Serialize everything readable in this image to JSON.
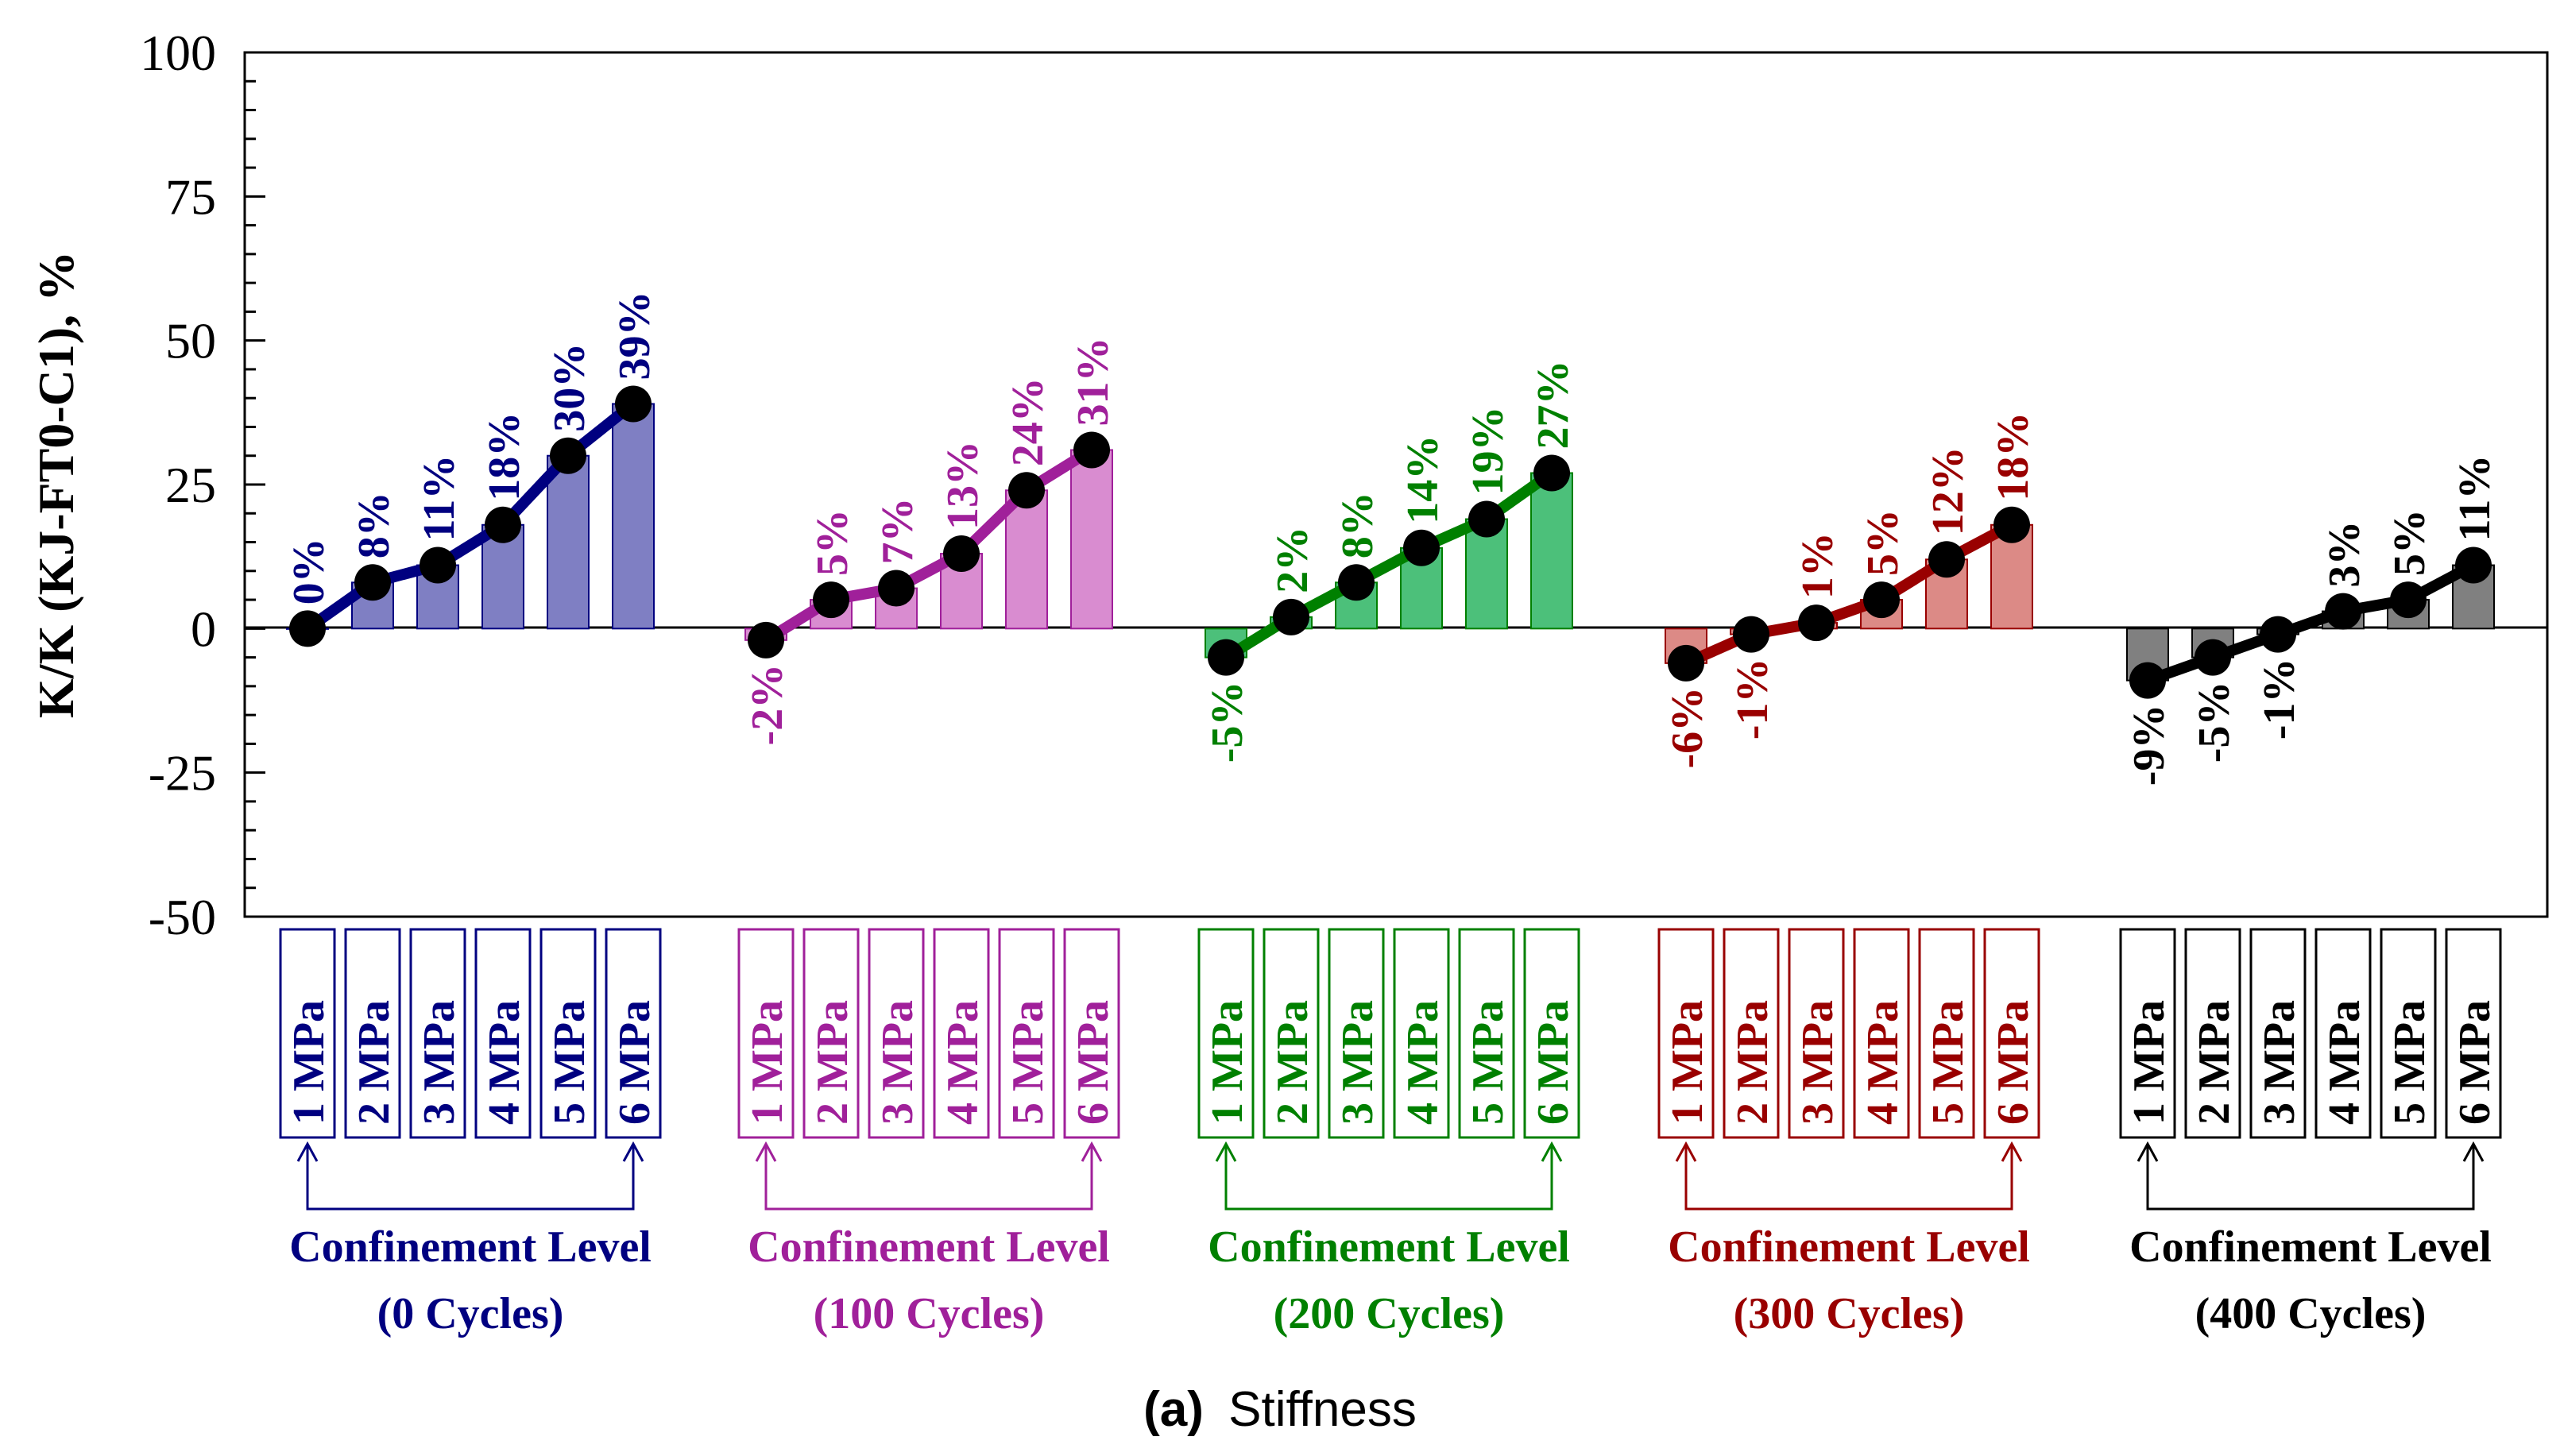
{
  "chart_data": {
    "type": "bar",
    "title": "",
    "ylabel": "K/K (KJ-FT0-C1), %",
    "xlabel": "",
    "ylim": [
      -50,
      100
    ],
    "yticks": [
      -50,
      -25,
      0,
      25,
      50,
      75,
      100
    ],
    "ytick_labels": [
      "-50",
      "-25",
      "0",
      "25",
      "50",
      "75",
      "100"
    ],
    "categories": [
      "1 MPa",
      "2 MPa",
      "3 MPa",
      "4 MPa",
      "5 MPa",
      "6 MPa"
    ],
    "series": [
      {
        "name": "0 Cycles",
        "values": [
          0,
          8,
          11,
          18,
          30,
          39
        ],
        "labels": [
          "0%",
          "8%",
          "11%",
          "18%",
          "30%",
          "39%"
        ],
        "line_color": "#000080",
        "bar_color": "#7f7fc3",
        "group_label_line1": "Confinement Level",
        "group_label_line2": "(0 Cycles)"
      },
      {
        "name": "100 Cycles",
        "values": [
          -2,
          5,
          7,
          13,
          24,
          31
        ],
        "labels": [
          "-2%",
          "5%",
          "7%",
          "13%",
          "24%",
          "31%"
        ],
        "line_color": "#a0209a",
        "bar_color": "#d98cd0",
        "group_label_line1": "Confinement Level",
        "group_label_line2": "(100 Cycles)"
      },
      {
        "name": "200 Cycles",
        "values": [
          -5,
          2,
          8,
          14,
          19,
          27
        ],
        "labels": [
          "-5%",
          "2%",
          "8%",
          "14%",
          "19%",
          "27%"
        ],
        "line_color": "#008000",
        "bar_color": "#4cc07a",
        "group_label_line1": "Confinement Level",
        "group_label_line2": "(200 Cycles)"
      },
      {
        "name": "300 Cycles",
        "values": [
          -6,
          -1,
          1,
          5,
          12,
          18
        ],
        "labels": [
          "-6%",
          "-1%",
          "1%",
          "5%",
          "12%",
          "18%"
        ],
        "line_color": "#990000",
        "bar_color": "#dc8a86",
        "group_label_line1": "Confinement Level",
        "group_label_line2": "(300 Cycles)"
      },
      {
        "name": "400 Cycles",
        "values": [
          -9,
          -5,
          -1,
          3,
          5,
          11
        ],
        "labels": [
          "-9%",
          "-5%",
          "-1%",
          "3%",
          "5%",
          "11%"
        ],
        "line_color": "#000000",
        "bar_color": "#808080",
        "group_label_line1": "Confinement Level",
        "group_label_line2": "(400 Cycles)"
      }
    ],
    "marker_color": "#000000"
  },
  "caption": {
    "prefix": "(a)",
    "text": "Stiffness"
  }
}
